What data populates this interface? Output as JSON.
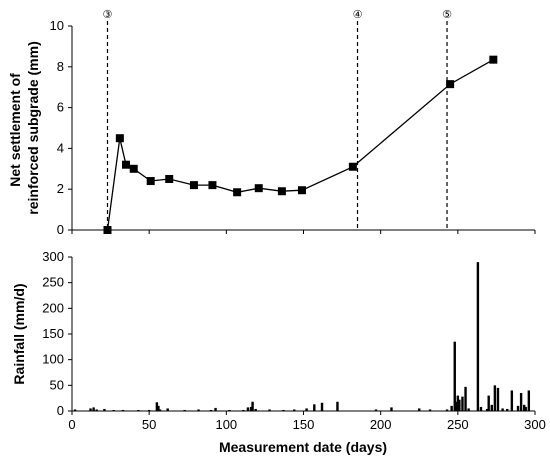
{
  "chart_data": [
    {
      "type": "line",
      "title": "",
      "xlabel": "",
      "ylabel_lines": [
        "Net settlement of",
        "reinforced subgrade (mm)"
      ],
      "xlim": [
        0,
        300
      ],
      "ylim": [
        0,
        10
      ],
      "yticks": [
        0,
        2,
        4,
        6,
        8,
        10
      ],
      "xticks": [],
      "marker": "square",
      "series": [
        {
          "x": [
            23,
            31,
            35,
            40,
            51,
            63,
            79,
            91,
            107,
            121,
            136,
            149,
            182,
            245,
            273
          ],
          "y": [
            0.0,
            4.5,
            3.2,
            3.0,
            2.4,
            2.5,
            2.2,
            2.2,
            1.85,
            2.05,
            1.9,
            1.95,
            3.1,
            7.15,
            8.35
          ]
        }
      ],
      "event_lines": [
        {
          "x": 23,
          "label": "③"
        },
        {
          "x": 185,
          "label": "④"
        },
        {
          "x": 243,
          "label": "⑤"
        }
      ]
    },
    {
      "type": "bar",
      "title": "",
      "xlabel": "Measurement date (days)",
      "ylabel": "Rainfall (mm/d)",
      "xlim": [
        0,
        300
      ],
      "ylim": [
        0,
        300
      ],
      "yticks": [
        0,
        50,
        100,
        150,
        200,
        250,
        300
      ],
      "xticks": [
        0,
        50,
        100,
        150,
        200,
        250,
        300
      ],
      "x": [
        2,
        12,
        14,
        16,
        21,
        27,
        33,
        43,
        50,
        55,
        56,
        57,
        62,
        71,
        73,
        82,
        88,
        90,
        93,
        102,
        108,
        111,
        114,
        116,
        117,
        119,
        128,
        137,
        144,
        152,
        157,
        162,
        172,
        197,
        207,
        225,
        232,
        243,
        246,
        248,
        249,
        250,
        251,
        253,
        255,
        257,
        263,
        265,
        269,
        270,
        272,
        274,
        276,
        279,
        282,
        285,
        289,
        291,
        293,
        294,
        296
      ],
      "values": [
        3,
        5,
        7,
        3,
        4,
        2,
        2,
        2,
        2,
        17,
        10,
        3,
        5,
        1,
        2,
        3,
        1,
        2,
        6,
        2,
        1,
        2,
        7,
        8,
        18,
        4,
        3,
        2,
        3,
        5,
        13,
        16,
        18,
        3,
        7,
        5,
        3,
        3,
        10,
        135,
        18,
        30,
        22,
        28,
        47,
        5,
        290,
        8,
        4,
        30,
        12,
        50,
        45,
        5,
        4,
        40,
        10,
        35,
        12,
        8,
        40
      ]
    }
  ]
}
